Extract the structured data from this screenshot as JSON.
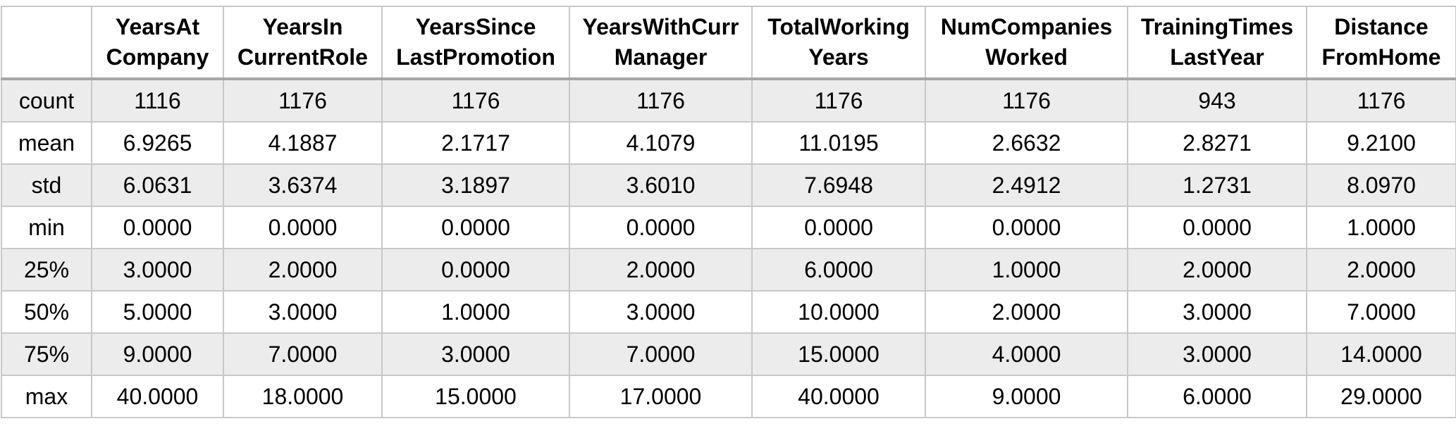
{
  "table": {
    "corner": "",
    "columns": [
      "YearsAt\nCompany",
      "YearsIn\nCurrentRole",
      "YearsSince\nLastPromotion",
      "YearsWithCurr\nManager",
      "TotalWorking\nYears",
      "NumCompanies\nWorked",
      "TrainingTimes\nLastYear",
      "Distance\nFromHome"
    ],
    "rows": [
      {
        "label": "count",
        "values": [
          "1116",
          "1176",
          "1176",
          "1176",
          "1176",
          "1176",
          "943",
          "1176"
        ]
      },
      {
        "label": "mean",
        "values": [
          "6.9265",
          "4.1887",
          "2.1717",
          "4.1079",
          "11.0195",
          "2.6632",
          "2.8271",
          "9.2100"
        ]
      },
      {
        "label": "std",
        "values": [
          "6.0631",
          "3.6374",
          "3.1897",
          "3.6010",
          "7.6948",
          "2.4912",
          "1.2731",
          "8.0970"
        ]
      },
      {
        "label": "min",
        "values": [
          "0.0000",
          "0.0000",
          "0.0000",
          "0.0000",
          "0.0000",
          "0.0000",
          "0.0000",
          "1.0000"
        ]
      },
      {
        "label": "25%",
        "values": [
          "3.0000",
          "2.0000",
          "0.0000",
          "2.0000",
          "6.0000",
          "1.0000",
          "2.0000",
          "2.0000"
        ]
      },
      {
        "label": "50%",
        "values": [
          "5.0000",
          "3.0000",
          "1.0000",
          "3.0000",
          "10.0000",
          "2.0000",
          "3.0000",
          "7.0000"
        ]
      },
      {
        "label": "75%",
        "values": [
          "9.0000",
          "7.0000",
          "3.0000",
          "7.0000",
          "15.0000",
          "4.0000",
          "3.0000",
          "14.0000"
        ]
      },
      {
        "label": "max",
        "values": [
          "40.0000",
          "18.0000",
          "15.0000",
          "17.0000",
          "40.0000",
          "9.0000",
          "6.0000",
          "29.0000"
        ]
      }
    ],
    "colors": {
      "shaded_row": "#ececec",
      "grid": "#c8c8c8",
      "header_rule": "#a6a6a6"
    }
  }
}
